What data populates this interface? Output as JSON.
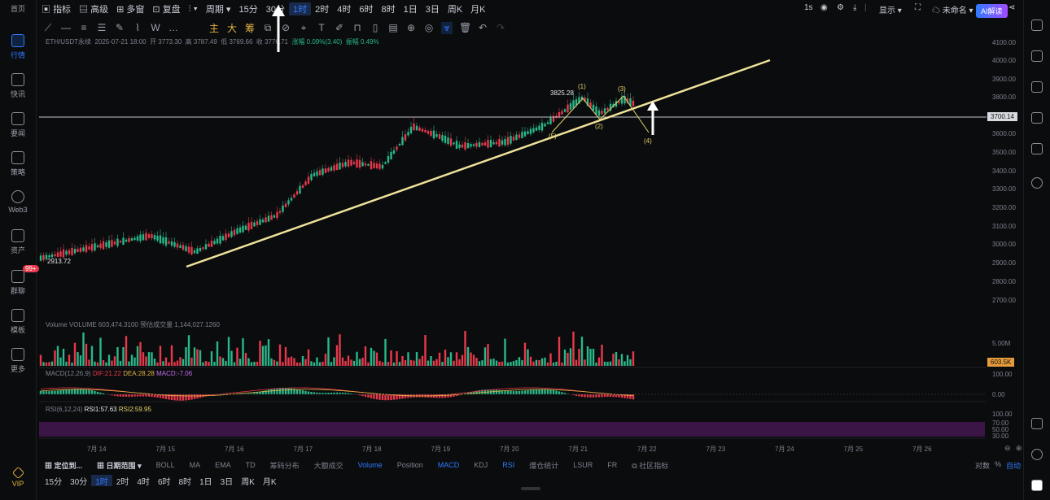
{
  "sidebar": {
    "items": [
      {
        "label": "首页"
      },
      {
        "label": "行情"
      },
      {
        "label": "快讯"
      },
      {
        "label": "要闻"
      },
      {
        "label": "策略"
      },
      {
        "label": "Web3"
      },
      {
        "label": "资产"
      },
      {
        "label": "群聊",
        "badge": "99+"
      },
      {
        "label": "模板"
      },
      {
        "label": "更多"
      },
      {
        "label": "VIP"
      }
    ]
  },
  "toolbar": {
    "indicators": "指标",
    "advanced": "高级",
    "multi": "多窗",
    "replay": "复盘",
    "period": "周期",
    "timeframes": [
      "15分",
      "30分",
      "1时",
      "2时",
      "4时",
      "6时",
      "8时",
      "1日",
      "3日",
      "周K",
      "月K"
    ],
    "selected_timeframe": "1时",
    "right_1s": "1s",
    "display": "显示",
    "unnamed": "未命名",
    "ai_button": "AI解读"
  },
  "info": {
    "symbol": "ETH/USDT永续",
    "datetime": "2025-07-21 18:00",
    "open": "开 3773.30",
    "high": "高 3787.49",
    "low": "低 3769.66",
    "close": "收 3776.71",
    "change": "涨幅 0.09%(3.40)",
    "amplitude": "振幅 0.49%"
  },
  "price_axis": [
    "4100.00",
    "4000.00",
    "3900.00",
    "3800.00",
    "3600.00",
    "3500.00",
    "3400.00",
    "3300.00",
    "3200.00",
    "3100.00",
    "3000.00",
    "2900.00",
    "2800.00",
    "2700.00"
  ],
  "current_price": "3700.14",
  "high_label": "3825.28",
  "low_label": "2913.72",
  "wave_labels": [
    "(1)",
    "(2)",
    "(3)",
    "(4)",
    "(5)"
  ],
  "x_axis": [
    "7月 14",
    "7月 15",
    "7月 16",
    "7月 17",
    "7月 18",
    "7月 19",
    "7月 20",
    "7月 21",
    "7月 22",
    "7月 23",
    "7月 24",
    "7月 25",
    "7月 26"
  ],
  "volume": {
    "label": "Volume  VOLUME 603,474.3100  预估成交量 1,144,027.1260",
    "axis": "5.00M",
    "current": "603.5K"
  },
  "macd": {
    "label": "MACD(12,26,9)",
    "dif": "DIF:21.22",
    "dea": "DEA:28.28",
    "macd": "MACD:-7.06",
    "axis_top": "100.00",
    "axis_zero": "0.00"
  },
  "rsi": {
    "label": "RSI(6,12,24)",
    "rsi1": "RSI1:57.63",
    "rsi2": "RSI2:59.95",
    "axis": [
      "100.00",
      "70.00",
      "50.00",
      "30.00"
    ]
  },
  "bottombar": {
    "locate": "定位到...",
    "date_range": "日期范围",
    "tabs": [
      "BOLL",
      "MA",
      "EMA",
      "TD",
      "筹码分布",
      "大额成交",
      "Volume",
      "Position",
      "MACD",
      "KDJ",
      "RSI",
      "爆仓统计",
      "LSUR",
      "FR",
      "社区指标"
    ],
    "active_tabs": [
      "Volume",
      "MACD",
      "RSI"
    ],
    "right": [
      "对数",
      "%",
      "自动"
    ]
  },
  "bottom_timeframes": [
    "15分",
    "30分",
    "1时",
    "2时",
    "4时",
    "6时",
    "8时",
    "1日",
    "3日",
    "周K",
    "月K"
  ],
  "bottom_selected": "1时",
  "colors": {
    "up": "#28b88a",
    "down": "#e8394b",
    "trendline": "#efe29a",
    "accent": "#2f7bff"
  }
}
